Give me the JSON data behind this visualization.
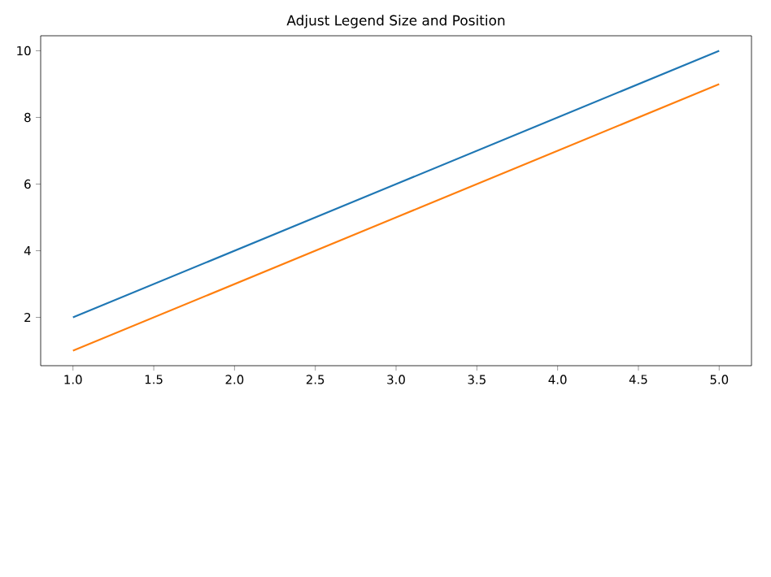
{
  "chart_data": {
    "type": "line",
    "title": "Adjust Legend Size and Position",
    "x": [
      1,
      2,
      3,
      4,
      5
    ],
    "series": [
      {
        "color": "#1f77b4",
        "values": [
          2,
          4,
          6,
          8,
          10
        ]
      },
      {
        "color": "#ff7f0e",
        "values": [
          1,
          3,
          5,
          7,
          9
        ]
      }
    ],
    "xlim": [
      0.8,
      5.2
    ],
    "ylim": [
      0.55,
      10.45
    ],
    "xticks": [
      {
        "value": 1.0,
        "label": "1.0"
      },
      {
        "value": 1.5,
        "label": "1.5"
      },
      {
        "value": 2.0,
        "label": "2.0"
      },
      {
        "value": 2.5,
        "label": "2.5"
      },
      {
        "value": 3.0,
        "label": "3.0"
      },
      {
        "value": 3.5,
        "label": "3.5"
      },
      {
        "value": 4.0,
        "label": "4.0"
      },
      {
        "value": 4.5,
        "label": "4.5"
      },
      {
        "value": 5.0,
        "label": "5.0"
      }
    ],
    "yticks": [
      2,
      4,
      6,
      8,
      10
    ],
    "grid": false,
    "marker": "none",
    "line_style": "solid"
  }
}
